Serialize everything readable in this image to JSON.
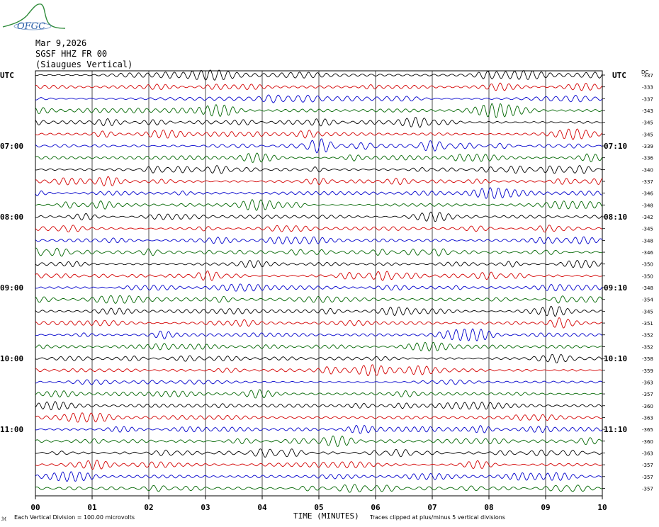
{
  "logo": {
    "text": "OFGC",
    "colors": {
      "hill": "#2e8b3a",
      "text": "#2a5fa8"
    }
  },
  "header": {
    "date": "Mar 9,2026",
    "station": "SGSF HHZ FR 00",
    "location": "(Siaugues Vertical)"
  },
  "chart_data": {
    "type": "line",
    "title": "",
    "left_axis_label": "UTC",
    "right_axis_label": "UTC",
    "dc_label": "DC",
    "left_hour_labels": [
      "07:00",
      "08:00",
      "09:00",
      "10:00",
      "11:00"
    ],
    "right_hour_labels": [
      "07:10",
      "08:10",
      "09:10",
      "10:10",
      "11:10"
    ],
    "hour_label_rows": [
      6,
      12,
      18,
      24,
      30
    ],
    "xlabel": "TIME (MINUTES)",
    "x_ticks": [
      "00",
      "01",
      "02",
      "03",
      "04",
      "05",
      "06",
      "07",
      "08",
      "09",
      "10"
    ],
    "xlim": [
      0,
      10
    ],
    "trace_colors": [
      "#000000",
      "#d40000",
      "#0000cc",
      "#006600"
    ],
    "trace_count": 36,
    "dc_offsets": [
      -337,
      -333,
      -337,
      -343,
      -345,
      -345,
      -339,
      -336,
      -340,
      -337,
      -346,
      -348,
      -342,
      -345,
      -348,
      -346,
      -350,
      -350,
      -348,
      -354,
      -345,
      -351,
      -352,
      -352,
      -358,
      -359,
      -363,
      -357,
      -360,
      -363,
      -365,
      -360,
      -363,
      -357,
      -357,
      -357
    ],
    "events": [
      {
        "row": 0,
        "minute": 3.2
      },
      {
        "row": 3,
        "minute": 3.3
      },
      {
        "row": 5,
        "minute": 9.5
      },
      {
        "row": 6,
        "minute": 5.0
      },
      {
        "row": 34,
        "minute": 0.6
      }
    ]
  },
  "footer": {
    "left_note": "Each Vertical Division =  100.00 microvolts",
    "right_note": "Traces clipped at plus/minus 5 vertical divisions",
    "corner_mark": "ℳ"
  }
}
